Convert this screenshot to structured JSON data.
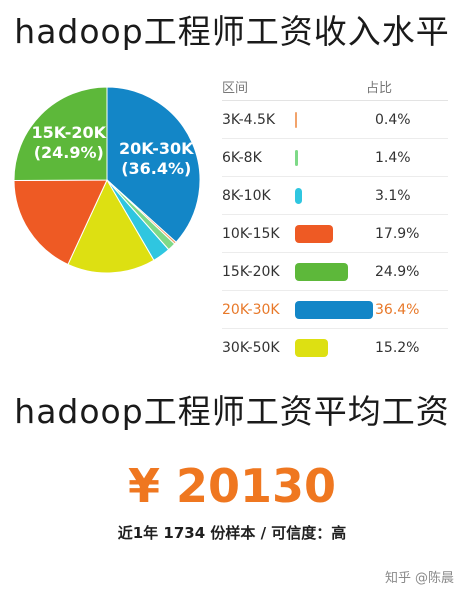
{
  "title_top": "hadoop工程师工资收入水平",
  "title_mid": "hadoop工程师工资平均工资",
  "legend_headers": {
    "range": "区间",
    "share": "占比"
  },
  "chart_data": {
    "type": "pie",
    "title": "hadoop工程师工资收入水平",
    "categories": [
      "3K-4.5K",
      "6K-8K",
      "8K-10K",
      "10K-15K",
      "15K-20K",
      "20K-30K",
      "30K-50K"
    ],
    "values": [
      0.4,
      1.4,
      3.1,
      17.9,
      24.9,
      36.4,
      15.2
    ],
    "labels": [
      "0.4%",
      "1.4%",
      "3.1%",
      "17.9%",
      "24.9%",
      "36.4%",
      "15.2%"
    ],
    "colors": [
      "#f2a36b",
      "#7ed987",
      "#2fc6e0",
      "#ee5a24",
      "#5db83a",
      "#1386c7",
      "#dde012"
    ],
    "highlight": "20K-30K",
    "slice_labels": [
      {
        "category": "20K-30K",
        "line1": "20K-30K",
        "line2": "(36.4%)"
      },
      {
        "category": "15K-20K",
        "line1": "15K-20K",
        "line2": "(24.9%)"
      }
    ]
  },
  "average_salary": "¥ 20130",
  "sample_info": "近1年 1734 份样本 / 可信度：高",
  "watermark": {
    "brand": "知乎",
    "author": "@陈晨"
  }
}
